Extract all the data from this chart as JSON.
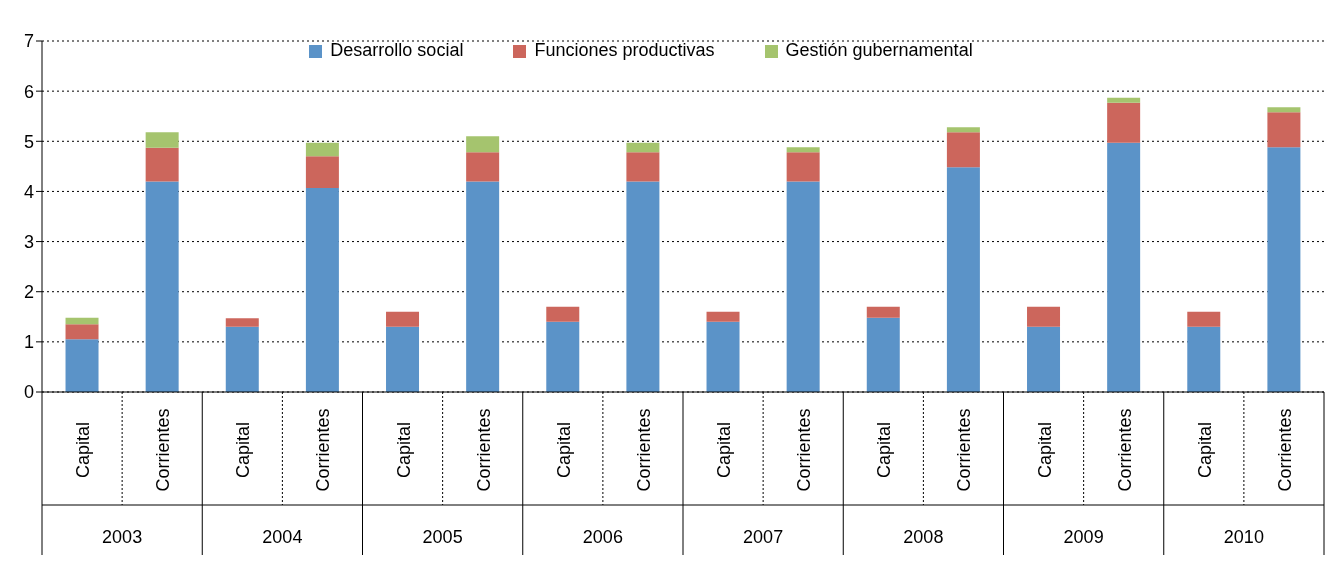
{
  "chart_data": {
    "type": "bar",
    "stacked": true,
    "categories": [
      "Capital",
      "Corrientes",
      "Capital",
      "Corrientes",
      "Capital",
      "Corrientes",
      "Capital",
      "Corrientes",
      "Capital",
      "Corrientes",
      "Capital",
      "Corrientes",
      "Capital",
      "Corrientes",
      "Capital",
      "Corrientes"
    ],
    "annotations": [
      "2003",
      "2004",
      "2005",
      "2006",
      "2007",
      "2008",
      "2009",
      "2010"
    ],
    "series": [
      {
        "name": "Desarrollo social",
        "color": "#5b93c8",
        "values": [
          1.05,
          4.2,
          1.3,
          4.07,
          1.3,
          4.2,
          1.4,
          4.2,
          1.4,
          4.2,
          1.48,
          4.48,
          1.3,
          4.97,
          1.3,
          4.88
        ]
      },
      {
        "name": "Funciones productivas",
        "color": "#cc665c",
        "values": [
          0.3,
          0.67,
          0.17,
          0.63,
          0.3,
          0.58,
          0.3,
          0.58,
          0.2,
          0.58,
          0.22,
          0.7,
          0.4,
          0.8,
          0.3,
          0.7
        ]
      },
      {
        "name": "Gestión gubernamental",
        "color": "#a5c46e",
        "values": [
          0.13,
          0.31,
          null,
          0.27,
          null,
          0.32,
          null,
          0.19,
          null,
          0.1,
          null,
          0.1,
          null,
          0.1,
          null,
          0.1
        ]
      }
    ],
    "ylim": [
      0,
      7
    ],
    "yticks": [
      0,
      1,
      2,
      3,
      4,
      5,
      6,
      7
    ],
    "grid": "y",
    "legend": "top"
  }
}
